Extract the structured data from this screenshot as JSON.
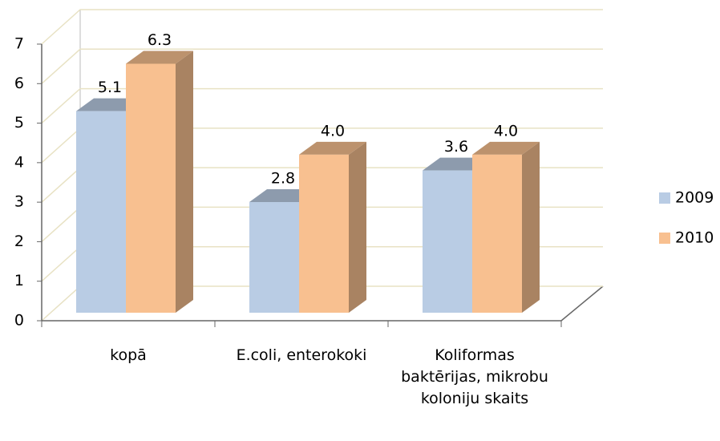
{
  "chart_data": {
    "type": "bar3d",
    "categories": [
      "kopā",
      "E.coli, enterokoki",
      "Koliformas baktērijas, mikrobu koloniju skaits"
    ],
    "series": [
      {
        "name": "2009",
        "color": "#b9cce4",
        "values": [
          5.1,
          2.8,
          3.6
        ],
        "value_labels": [
          "5.1",
          "2.8",
          "3.6"
        ]
      },
      {
        "name": "2010",
        "color": "#f8c090",
        "values": [
          6.3,
          4,
          4
        ],
        "value_labels": [
          "6.3",
          "4.0",
          "4.0"
        ]
      }
    ],
    "ylim": [
      0,
      7
    ],
    "yticks": [
      0,
      1,
      2,
      3,
      4,
      5,
      6,
      7
    ],
    "grid": true,
    "legend": "right"
  }
}
